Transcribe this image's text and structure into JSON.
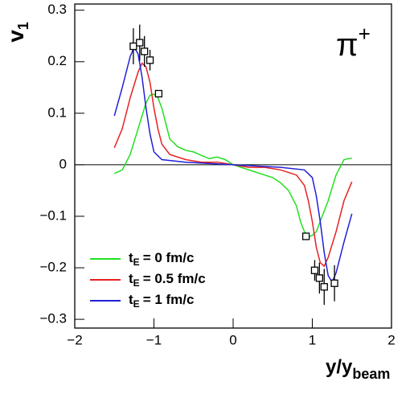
{
  "chart_data": {
    "type": "line",
    "y_label": "v",
    "y_label_sub": "1",
    "x_label": "y/y",
    "x_label_sub": "beam",
    "annotation": "π",
    "annotation_sup": "+",
    "legend_symbol": "t",
    "legend_subscript": "E",
    "xlim": [
      -2,
      2
    ],
    "ylim": [
      -0.317,
      0.312
    ],
    "xticks": [
      {
        "value": -2,
        "label": "−2"
      },
      {
        "value": -1,
        "label": "−1"
      },
      0,
      1,
      2
    ],
    "yticks": [
      {
        "value": -0.3,
        "label": "−0.3"
      },
      {
        "value": -0.2,
        "label": "−0.2"
      },
      {
        "value": -0.1,
        "label": "−0.1"
      },
      0,
      0.1,
      0.2,
      0.3
    ],
    "zero_line": true,
    "series": [
      {
        "name": "= 0 fm/c",
        "color": "#22e022",
        "x": [
          -1.5,
          -1.4,
          -1.3,
          -1.2,
          -1.1,
          -1.05,
          -1.0,
          -0.95,
          -0.9,
          -0.85,
          -0.8,
          -0.7,
          -0.6,
          -0.5,
          -0.4,
          -0.3,
          -0.2,
          -0.1,
          0,
          0.1,
          0.2,
          0.3,
          0.4,
          0.5,
          0.6,
          0.7,
          0.8,
          0.85,
          0.9,
          0.95,
          1.0,
          1.05,
          1.1,
          1.2,
          1.3,
          1.4,
          1.5
        ],
        "values": [
          -0.017,
          -0.01,
          0.02,
          0.07,
          0.12,
          0.135,
          0.137,
          0.13,
          0.11,
          0.08,
          0.05,
          0.035,
          0.028,
          0.025,
          0.018,
          0.012,
          0.015,
          0.01,
          0.0,
          -0.005,
          -0.01,
          -0.015,
          -0.02,
          -0.025,
          -0.035,
          -0.05,
          -0.08,
          -0.11,
          -0.13,
          -0.14,
          -0.137,
          -0.13,
          -0.11,
          -0.07,
          -0.02,
          0.01,
          0.013
        ]
      },
      {
        "name": "= 0.5 fm/c",
        "color": "#e82020",
        "x": [
          -1.5,
          -1.4,
          -1.3,
          -1.2,
          -1.15,
          -1.1,
          -1.05,
          -1.0,
          -0.95,
          -0.9,
          -0.8,
          -0.6,
          -0.4,
          -0.2,
          0,
          0.2,
          0.4,
          0.6,
          0.8,
          0.9,
          0.95,
          1.0,
          1.05,
          1.1,
          1.15,
          1.2,
          1.3,
          1.4,
          1.5
        ],
        "values": [
          0.033,
          0.07,
          0.13,
          0.18,
          0.197,
          0.19,
          0.16,
          0.11,
          0.07,
          0.04,
          0.02,
          0.01,
          0.005,
          0.005,
          0,
          -0.005,
          -0.005,
          -0.01,
          -0.02,
          -0.04,
          -0.07,
          -0.11,
          -0.16,
          -0.19,
          -0.197,
          -0.18,
          -0.13,
          -0.07,
          -0.033
        ]
      },
      {
        "name": "= 1 fm/c",
        "color": "#2020d8",
        "x": [
          -1.5,
          -1.4,
          -1.3,
          -1.25,
          -1.2,
          -1.15,
          -1.1,
          -1.05,
          -1.0,
          -0.9,
          -0.6,
          0,
          0.6,
          0.9,
          1.0,
          1.05,
          1.1,
          1.15,
          1.2,
          1.25,
          1.3,
          1.4,
          1.5
        ],
        "values": [
          0.095,
          0.15,
          0.21,
          0.228,
          0.215,
          0.17,
          0.11,
          0.06,
          0.025,
          0.01,
          0.005,
          0,
          -0.005,
          -0.01,
          -0.025,
          -0.06,
          -0.11,
          -0.17,
          -0.215,
          -0.228,
          -0.21,
          -0.15,
          -0.095
        ]
      }
    ],
    "points": {
      "color": "#000000",
      "x": [
        -1.26,
        -1.18,
        -1.12,
        -1.05,
        -0.94,
        0.92,
        1.03,
        1.09,
        1.15,
        1.28
      ],
      "values": [
        0.23,
        0.237,
        0.22,
        0.203,
        0.138,
        -0.139,
        -0.205,
        -0.22,
        -0.237,
        -0.23
      ],
      "errors": [
        0.035,
        0.035,
        0.03,
        0.02,
        0.007,
        0.007,
        0.02,
        0.03,
        0.035,
        0.035
      ]
    }
  }
}
